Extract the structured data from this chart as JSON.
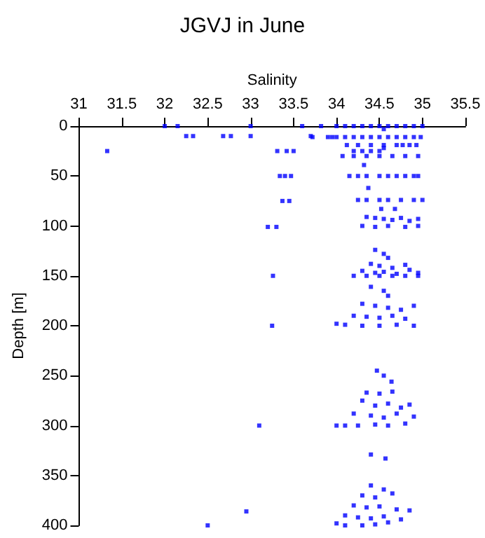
{
  "chart_data": {
    "type": "scatter",
    "title": "JGVJ in June",
    "xlabel": "Salinity",
    "ylabel": "Depth [m]",
    "xlim": [
      31,
      35.5
    ],
    "xticks": [
      31,
      31.5,
      32,
      32.5,
      33,
      33.5,
      34,
      34.5,
      35,
      35.5
    ],
    "ylim": [
      400,
      0
    ],
    "yticks": [
      0,
      50,
      100,
      150,
      200,
      250,
      300,
      350,
      400
    ],
    "grid": false,
    "marker": "square",
    "series": [
      {
        "color": "#0000ff",
        "x": [
          31.33,
          32.0,
          32.15,
          32.25,
          32.33,
          32.68,
          32.77,
          33.0,
          33.0,
          33.6,
          33.7,
          33.82,
          33.72,
          33.9,
          33.95,
          33.31,
          33.42,
          33.5,
          33.34,
          33.4,
          33.47,
          33.37,
          33.45,
          33.2,
          33.3,
          33.26,
          33.25,
          33.1,
          32.95,
          32.5,
          34.0,
          34.1,
          34.2,
          34.3,
          34.4,
          34.5,
          34.6,
          34.7,
          34.8,
          34.9,
          35.0,
          34.55,
          34.0,
          34.1,
          34.2,
          34.3,
          34.4,
          34.5,
          34.6,
          34.7,
          34.8,
          34.9,
          34.98,
          34.12,
          34.25,
          34.4,
          34.55,
          34.7,
          34.77,
          34.85,
          34.93,
          34.2,
          34.3,
          34.4,
          34.5,
          34.55,
          34.07,
          34.2,
          34.35,
          34.5,
          34.65,
          34.8,
          34.95,
          34.32,
          34.15,
          34.25,
          34.35,
          34.5,
          34.6,
          34.7,
          34.8,
          34.9,
          34.95,
          34.37,
          34.25,
          34.35,
          34.5,
          34.6,
          34.75,
          34.9,
          35.0,
          34.52,
          34.68,
          34.35,
          34.45,
          34.55,
          34.65,
          34.75,
          34.85,
          34.95,
          34.3,
          34.45,
          34.6,
          34.8,
          34.95,
          34.45,
          34.55,
          34.6,
          34.4,
          34.5,
          34.65,
          34.8,
          34.3,
          34.45,
          34.55,
          34.7,
          34.85,
          34.95,
          34.2,
          34.35,
          34.5,
          34.65,
          34.8,
          34.95,
          34.4,
          34.55,
          34.6,
          34.3,
          34.45,
          34.6,
          34.75,
          34.9,
          34.2,
          34.35,
          34.5,
          34.65,
          34.8,
          34.0,
          34.1,
          34.3,
          34.5,
          34.7,
          34.9,
          34.47,
          34.55,
          34.64,
          34.35,
          34.5,
          34.65,
          34.3,
          34.45,
          34.6,
          34.75,
          34.85,
          34.2,
          34.4,
          34.55,
          34.7,
          34.9,
          34.0,
          34.1,
          34.25,
          34.45,
          34.6,
          34.8,
          34.4,
          34.57,
          34.4,
          34.55,
          34.3,
          34.45,
          34.65,
          34.2,
          34.35,
          34.5,
          34.7,
          34.85,
          34.1,
          34.25,
          34.4,
          34.55,
          34.75,
          34.0,
          34.1,
          34.3,
          34.45,
          34.6
        ],
        "values": [
          25,
          0,
          0,
          10,
          10,
          10,
          10,
          0,
          10,
          0,
          10,
          0,
          11,
          11,
          11,
          25,
          25,
          25,
          50,
          50,
          50,
          75,
          75,
          101,
          101,
          150,
          200,
          300,
          386,
          400,
          0,
          0,
          0,
          0,
          0,
          0,
          0,
          0,
          0,
          0,
          0,
          3,
          11,
          11,
          11,
          11,
          11,
          11,
          11,
          11,
          11,
          11,
          11,
          19,
          19,
          19,
          19,
          19,
          19,
          19,
          19,
          25,
          25,
          25,
          25,
          22,
          30,
          30,
          30,
          30,
          30,
          30,
          30,
          39,
          50,
          50,
          50,
          50,
          50,
          50,
          50,
          50,
          50,
          62,
          74,
          74,
          74,
          74,
          74,
          74,
          74,
          83,
          83,
          91,
          92,
          93,
          94,
          92,
          95,
          93,
          100,
          101,
          100,
          101,
          100,
          124,
          128,
          132,
          138,
          140,
          142,
          139,
          145,
          147,
          146,
          148,
          144,
          147,
          150,
          150,
          150,
          150,
          150,
          150,
          161,
          165,
          170,
          178,
          180,
          182,
          184,
          180,
          190,
          191,
          192,
          190,
          193,
          198,
          199,
          200,
          200,
          199,
          200,
          245,
          250,
          256,
          267,
          268,
          266,
          275,
          280,
          278,
          282,
          279,
          288,
          290,
          292,
          288,
          291,
          300,
          300,
          300,
          299,
          300,
          298,
          329,
          333,
          360,
          364,
          370,
          372,
          368,
          380,
          382,
          381,
          384,
          385,
          390,
          392,
          393,
          391,
          394,
          398,
          400,
          400,
          399,
          397
        ]
      }
    ]
  }
}
